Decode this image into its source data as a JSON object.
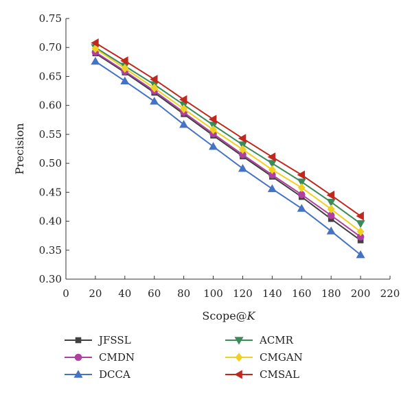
{
  "chart_data": {
    "type": "line",
    "xlabel": "Scope@",
    "xlabel_italic": "K",
    "ylabel": "Precision",
    "xlim": [
      0,
      220
    ],
    "ylim": [
      0.3,
      0.75
    ],
    "xticks": [
      0,
      20,
      40,
      60,
      80,
      100,
      120,
      140,
      160,
      180,
      200,
      220
    ],
    "yticks": [
      "0.30",
      "0.35",
      "0.40",
      "0.45",
      "0.50",
      "0.55",
      "0.60",
      "0.65",
      "0.70",
      "0.75"
    ],
    "grid": false,
    "legend_position": "bottom",
    "x": [
      20,
      40,
      60,
      80,
      100,
      120,
      140,
      160,
      180,
      200
    ],
    "series": [
      {
        "name": "JFSSL",
        "color": "#404040",
        "marker": "square",
        "values": [
          0.69,
          0.657,
          0.622,
          0.585,
          0.548,
          0.512,
          0.477,
          0.442,
          0.404,
          0.367
        ]
      },
      {
        "name": "CMDN",
        "color": "#b040a0",
        "marker": "circle",
        "values": [
          0.692,
          0.659,
          0.625,
          0.588,
          0.551,
          0.515,
          0.48,
          0.446,
          0.41,
          0.373
        ]
      },
      {
        "name": "DCCA",
        "color": "#4472c4",
        "marker": "triangle-up",
        "values": [
          0.676,
          0.642,
          0.607,
          0.567,
          0.529,
          0.491,
          0.456,
          0.422,
          0.383,
          0.342
        ]
      },
      {
        "name": "ACMR",
        "color": "#3a8a5a",
        "marker": "triangle-down",
        "values": [
          0.7,
          0.668,
          0.636,
          0.601,
          0.566,
          0.532,
          0.5,
          0.468,
          0.433,
          0.396
        ]
      },
      {
        "name": "CMGAN",
        "color": "#f0d020",
        "marker": "diamond",
        "values": [
          0.698,
          0.664,
          0.63,
          0.594,
          0.558,
          0.524,
          0.489,
          0.458,
          0.421,
          0.382
        ]
      },
      {
        "name": "CMSAL",
        "color": "#c0281e",
        "marker": "triangle-left",
        "values": [
          0.708,
          0.677,
          0.645,
          0.61,
          0.576,
          0.543,
          0.511,
          0.48,
          0.445,
          0.409
        ]
      }
    ],
    "legend_order": [
      "JFSSL",
      "ACMR",
      "CMDN",
      "CMGAN",
      "DCCA",
      "CMSAL"
    ]
  }
}
